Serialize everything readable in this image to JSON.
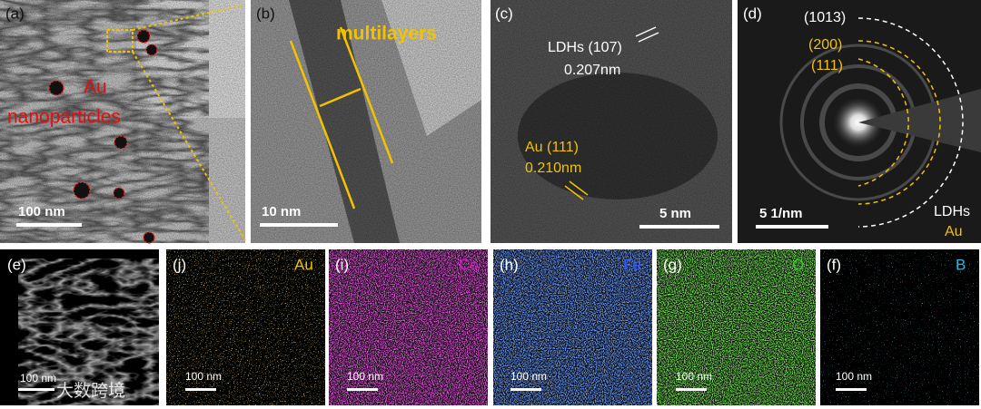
{
  "panels": {
    "a": {
      "label": "(a)",
      "annotation_1": "Au",
      "annotation_2": "nanoparticles",
      "scale_bar": "100 nm"
    },
    "b": {
      "label": "(b)",
      "annotation": "multilayers",
      "scale_bar": "10 nm"
    },
    "c": {
      "label": "(c)",
      "ldh_plane": "LDHs (107)",
      "ldh_spacing": "0.207nm",
      "au_plane": "Au (111)",
      "au_spacing": "0.210nm",
      "scale_bar": "5 nm"
    },
    "d": {
      "label": "(d)",
      "ring_1": "(1013)",
      "ring_2": "(200)",
      "ring_3": "(111)",
      "scale_bar": "5 1/nm",
      "legend_1": "LDHs",
      "legend_2": "Au"
    },
    "e": {
      "label": "(e)",
      "scale_bar": "100 nm"
    },
    "j": {
      "label": "(j)",
      "element": "Au",
      "scale_bar": "100 nm"
    },
    "i": {
      "label": "(i)",
      "element": "Co",
      "scale_bar": "100 nm"
    },
    "h": {
      "label": "(h)",
      "element": "Fe",
      "scale_bar": "100 nm"
    },
    "g": {
      "label": "(g)",
      "element": "O",
      "scale_bar": "100 nm"
    },
    "f": {
      "label": "(f)",
      "element": "B",
      "scale_bar": "100 nm"
    }
  },
  "watermark": "大数跨境"
}
